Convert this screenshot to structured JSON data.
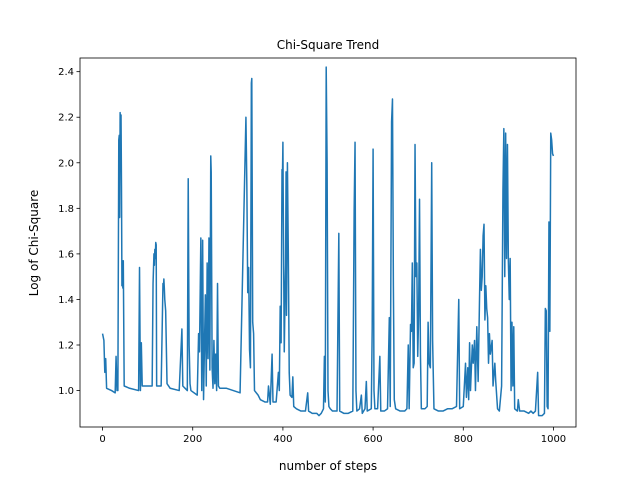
{
  "chart_data": {
    "type": "line",
    "title": "Chi-Square Trend",
    "xlabel": "number of steps",
    "ylabel": "Log of Chi-Square",
    "xlim": [
      -50,
      1050
    ],
    "ylim": [
      0.84,
      2.46
    ],
    "xticks": [
      0,
      200,
      400,
      600,
      800,
      1000
    ],
    "yticks": [
      1.0,
      1.2,
      1.4,
      1.6,
      1.8,
      2.0,
      2.2,
      2.4
    ],
    "ytick_labels": [
      "1.0",
      "1.2",
      "1.4",
      "1.6",
      "1.8",
      "2.0",
      "2.2",
      "2.4"
    ],
    "grid": false,
    "legend": "none",
    "series_color": "#1f77b4",
    "series": [
      {
        "points": [
          [
            0,
            1.25
          ],
          [
            3,
            1.22
          ],
          [
            5,
            1.08
          ],
          [
            7,
            1.14
          ],
          [
            9,
            1.01
          ],
          [
            20,
            1.0
          ],
          [
            28,
            0.99
          ],
          [
            30,
            1.15
          ],
          [
            32,
            1.0
          ],
          [
            34,
            1.0
          ],
          [
            36,
            2.1
          ],
          [
            37,
            2.12
          ],
          [
            38,
            1.76
          ],
          [
            39,
            2.22
          ],
          [
            40,
            2.0
          ],
          [
            41,
            2.21
          ],
          [
            42,
            1.9
          ],
          [
            43,
            1.46
          ],
          [
            44,
            1.57
          ],
          [
            45,
            1.45
          ],
          [
            46,
            1.57
          ],
          [
            48,
            1.02
          ],
          [
            60,
            1.01
          ],
          [
            80,
            1.0
          ],
          [
            82,
            1.54
          ],
          [
            84,
            1.0
          ],
          [
            86,
            1.21
          ],
          [
            88,
            1.02
          ],
          [
            100,
            1.02
          ],
          [
            110,
            1.02
          ],
          [
            112,
            1.47
          ],
          [
            114,
            1.6
          ],
          [
            115,
            1.55
          ],
          [
            116,
            1.62
          ],
          [
            117,
            1.58
          ],
          [
            118,
            1.65
          ],
          [
            119,
            1.64
          ],
          [
            120,
            1.02
          ],
          [
            130,
            1.02
          ],
          [
            134,
            1.47
          ],
          [
            135,
            1.45
          ],
          [
            136,
            1.49
          ],
          [
            137,
            1.45
          ],
          [
            138,
            1.4
          ],
          [
            140,
            1.35
          ],
          [
            143,
            1.03
          ],
          [
            150,
            1.01
          ],
          [
            170,
            1.0
          ],
          [
            176,
            1.27
          ],
          [
            178,
            1.02
          ],
          [
            188,
            1.0
          ],
          [
            190,
            1.93
          ],
          [
            192,
            1.2
          ],
          [
            194,
            1.03
          ],
          [
            196,
            1.0
          ],
          [
            210,
            0.98
          ],
          [
            213,
            1.25
          ],
          [
            215,
            1.17
          ],
          [
            218,
            1.67
          ],
          [
            220,
            1.0
          ],
          [
            222,
            1.66
          ],
          [
            224,
            0.96
          ],
          [
            228,
            1.42
          ],
          [
            230,
            1.02
          ],
          [
            232,
            1.56
          ],
          [
            234,
            1.14
          ],
          [
            236,
            1.67
          ],
          [
            238,
            1.09
          ],
          [
            240,
            2.03
          ],
          [
            241,
            1.96
          ],
          [
            243,
            1.1
          ],
          [
            245,
            1.01
          ],
          [
            247,
            1.22
          ],
          [
            249,
            1.03
          ],
          [
            251,
            1.16
          ],
          [
            253,
            1.0
          ],
          [
            255,
            1.47
          ],
          [
            257,
            1.02
          ],
          [
            260,
            1.01
          ],
          [
            275,
            1.01
          ],
          [
            290,
            1.0
          ],
          [
            305,
            0.99
          ],
          [
            318,
            2.2
          ],
          [
            320,
            1.9
          ],
          [
            322,
            1.43
          ],
          [
            324,
            1.54
          ],
          [
            326,
            1.18
          ],
          [
            328,
            1.1
          ],
          [
            330,
            2.35
          ],
          [
            331,
            2.37
          ],
          [
            333,
            1.3
          ],
          [
            335,
            1.25
          ],
          [
            337,
            1.0
          ],
          [
            345,
            0.98
          ],
          [
            350,
            0.96
          ],
          [
            360,
            0.95
          ],
          [
            366,
            0.95
          ],
          [
            368,
            1.02
          ],
          [
            372,
            0.94
          ],
          [
            376,
            1.16
          ],
          [
            378,
            0.95
          ],
          [
            385,
            0.95
          ],
          [
            390,
            1.08
          ],
          [
            392,
            1.0
          ],
          [
            394,
            1.37
          ],
          [
            396,
            1.21
          ],
          [
            398,
            1.97
          ],
          [
            399,
            1.94
          ],
          [
            400,
            2.09
          ],
          [
            401,
            1.75
          ],
          [
            403,
            1.17
          ],
          [
            405,
            1.45
          ],
          [
            406,
            1.55
          ],
          [
            407,
            1.96
          ],
          [
            408,
            1.33
          ],
          [
            410,
            2.0
          ],
          [
            412,
            1.6
          ],
          [
            414,
            1.08
          ],
          [
            416,
            0.98
          ],
          [
            420,
            0.97
          ],
          [
            422,
            1.06
          ],
          [
            424,
            0.93
          ],
          [
            430,
            0.92
          ],
          [
            440,
            0.91
          ],
          [
            450,
            0.91
          ],
          [
            455,
            0.99
          ],
          [
            457,
            0.91
          ],
          [
            465,
            0.9
          ],
          [
            475,
            0.9
          ],
          [
            480,
            0.89
          ],
          [
            485,
            0.9
          ],
          [
            490,
            0.92
          ],
          [
            492,
            1.15
          ],
          [
            494,
            0.95
          ],
          [
            496,
            2.42
          ],
          [
            498,
            2.0
          ],
          [
            500,
            1.0
          ],
          [
            502,
            0.93
          ],
          [
            505,
            0.92
          ],
          [
            510,
            0.91
          ],
          [
            520,
            0.91
          ],
          [
            524,
            1.69
          ],
          [
            526,
            0.91
          ],
          [
            535,
            0.9
          ],
          [
            545,
            0.9
          ],
          [
            555,
            0.91
          ],
          [
            558,
            1.79
          ],
          [
            560,
            2.09
          ],
          [
            562,
            1.0
          ],
          [
            564,
            0.91
          ],
          [
            570,
            0.92
          ],
          [
            574,
            0.98
          ],
          [
            576,
            0.9
          ],
          [
            582,
            0.92
          ],
          [
            585,
            1.04
          ],
          [
            587,
            0.91
          ],
          [
            596,
            0.92
          ],
          [
            598,
            1.27
          ],
          [
            600,
            2.06
          ],
          [
            602,
            1.0
          ],
          [
            604,
            0.92
          ],
          [
            610,
            0.92
          ],
          [
            615,
            1.15
          ],
          [
            617,
            0.91
          ],
          [
            625,
            0.91
          ],
          [
            632,
            0.92
          ],
          [
            636,
            1.32
          ],
          [
            638,
            0.93
          ],
          [
            641,
            2.18
          ],
          [
            643,
            2.28
          ],
          [
            645,
            1.46
          ],
          [
            647,
            0.96
          ],
          [
            650,
            0.92
          ],
          [
            660,
            0.91
          ],
          [
            670,
            0.91
          ],
          [
            675,
            0.92
          ],
          [
            678,
            1.2
          ],
          [
            680,
            0.92
          ],
          [
            683,
            1.29
          ],
          [
            685,
            1.26
          ],
          [
            687,
            1.56
          ],
          [
            689,
            1.1
          ],
          [
            691,
            1.12
          ],
          [
            693,
            2.08
          ],
          [
            695,
            1.5
          ],
          [
            697,
            1.56
          ],
          [
            699,
            1.15
          ],
          [
            701,
            1.33
          ],
          [
            703,
            1.84
          ],
          [
            705,
            1.16
          ],
          [
            707,
            0.92
          ],
          [
            715,
            0.92
          ],
          [
            720,
            0.93
          ],
          [
            722,
            1.3
          ],
          [
            724,
            1.12
          ],
          [
            727,
            1.1
          ],
          [
            730,
            2.0
          ],
          [
            732,
            1.22
          ],
          [
            735,
            0.92
          ],
          [
            745,
            0.91
          ],
          [
            755,
            0.91
          ],
          [
            765,
            0.92
          ],
          [
            775,
            0.92
          ],
          [
            785,
            0.93
          ],
          [
            790,
            1.4
          ],
          [
            792,
            0.92
          ],
          [
            800,
            0.93
          ],
          [
            805,
            1.12
          ],
          [
            807,
            0.97
          ],
          [
            810,
            1.1
          ],
          [
            812,
            0.96
          ],
          [
            814,
            1.21
          ],
          [
            816,
            1.0
          ],
          [
            820,
            1.2
          ],
          [
            822,
            1.12
          ],
          [
            825,
            1.22
          ],
          [
            827,
            1.0
          ],
          [
            830,
            1.28
          ],
          [
            833,
            1.04
          ],
          [
            836,
            1.4
          ],
          [
            838,
            1.62
          ],
          [
            840,
            1.44
          ],
          [
            842,
            1.5
          ],
          [
            844,
            1.68
          ],
          [
            846,
            1.73
          ],
          [
            848,
            1.31
          ],
          [
            850,
            1.46
          ],
          [
            852,
            1.36
          ],
          [
            854,
            1.32
          ],
          [
            856,
            1.12
          ],
          [
            858,
            1.25
          ],
          [
            860,
            1.16
          ],
          [
            864,
            1.22
          ],
          [
            866,
            1.02
          ],
          [
            870,
            1.12
          ],
          [
            872,
            1.04
          ],
          [
            876,
            0.92
          ],
          [
            880,
            0.91
          ],
          [
            885,
            1.02
          ],
          [
            888,
            1.88
          ],
          [
            890,
            2.15
          ],
          [
            892,
            1.5
          ],
          [
            894,
            2.13
          ],
          [
            896,
            1.58
          ],
          [
            898,
            2.08
          ],
          [
            900,
            1.57
          ],
          [
            902,
            1.4
          ],
          [
            904,
            1.58
          ],
          [
            906,
            1.0
          ],
          [
            908,
            1.3
          ],
          [
            910,
            1.02
          ],
          [
            912,
            1.28
          ],
          [
            914,
            0.92
          ],
          [
            920,
            0.91
          ],
          [
            922,
            0.96
          ],
          [
            925,
            0.91
          ],
          [
            935,
            0.91
          ],
          [
            945,
            0.9
          ],
          [
            950,
            0.91
          ],
          [
            955,
            0.9
          ],
          [
            960,
            0.91
          ],
          [
            965,
            1.08
          ],
          [
            967,
            0.89
          ],
          [
            975,
            0.89
          ],
          [
            980,
            0.9
          ],
          [
            982,
            1.36
          ],
          [
            984,
            1.35
          ],
          [
            986,
            0.93
          ],
          [
            988,
            0.92
          ],
          [
            990,
            1.74
          ],
          [
            992,
            1.26
          ],
          [
            994,
            2.13
          ],
          [
            996,
            2.1
          ],
          [
            998,
            2.04
          ],
          [
            1000,
            2.03
          ]
        ]
      }
    ]
  }
}
